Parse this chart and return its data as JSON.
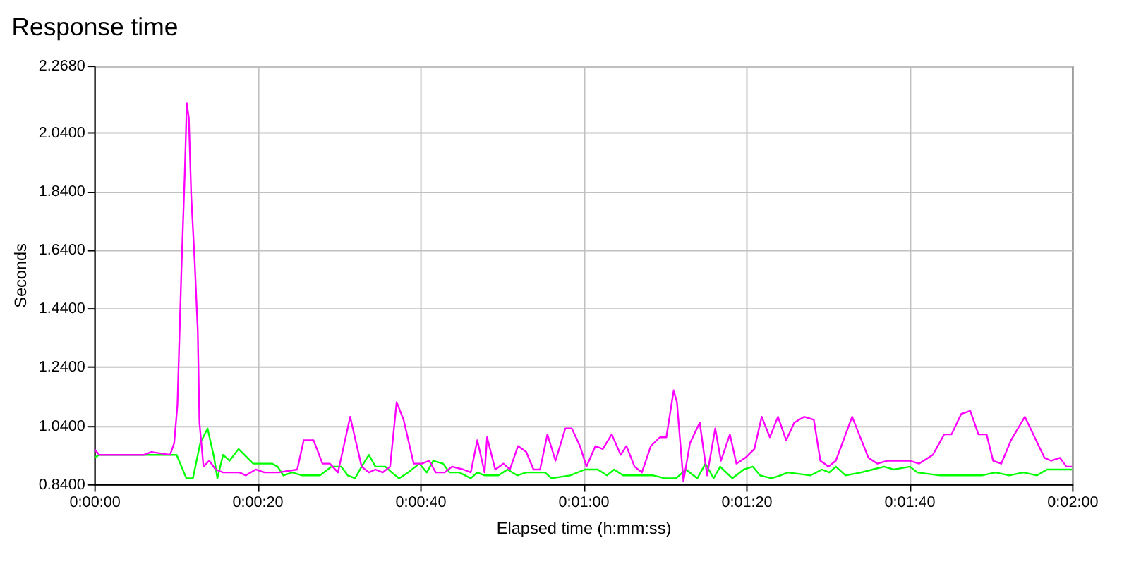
{
  "chart_data": {
    "type": "line",
    "title": "Response time",
    "xlabel": "Elapsed time (h:mm:ss)",
    "ylabel": "Seconds",
    "xlim": [
      0,
      120
    ],
    "xticks": [
      {
        "value": 0,
        "label": "0:00:00"
      },
      {
        "value": 20,
        "label": "0:00:20"
      },
      {
        "value": 40,
        "label": "0:00:40"
      },
      {
        "value": 60,
        "label": "0:01:00"
      },
      {
        "value": 80,
        "label": "0:01:20"
      },
      {
        "value": 100,
        "label": "0:01:40"
      },
      {
        "value": 120,
        "label": "0:02:00"
      }
    ],
    "ylim": [
      0.84,
      2.268
    ],
    "yticks": [
      {
        "value": 0.84,
        "label": "0.8400"
      },
      {
        "value": 1.04,
        "label": "1.0400"
      },
      {
        "value": 1.24,
        "label": "1.2400"
      },
      {
        "value": 1.44,
        "label": "1.4400"
      },
      {
        "value": 1.64,
        "label": "1.6400"
      },
      {
        "value": 1.84,
        "label": "1.8400"
      },
      {
        "value": 2.04,
        "label": "2.0400"
      },
      {
        "value": 2.268,
        "label": "2.2680"
      }
    ],
    "grid": true,
    "legend": false,
    "marker": "none",
    "line_style": "solid",
    "series": [
      {
        "color": "#00ff00",
        "x": [
          0,
          0.6,
          10.1,
          11.3,
          12.1,
          13,
          13.9,
          14.7,
          15.1,
          15.8,
          16.6,
          17.7,
          19.5,
          20.9,
          21.8,
          22.5,
          23.2,
          24.3,
          25.5,
          26.6,
          27.7,
          29.1,
          30.3,
          31.1,
          32,
          32.8,
          33.7,
          34.5,
          35.7,
          36.5,
          37.4,
          38.5,
          39.9,
          40.8,
          41.6,
          42.8,
          43.6,
          44.8,
          46.2,
          47,
          47.9,
          49.6,
          50.7,
          51.9,
          53,
          54.1,
          55.3,
          56.1,
          58.4,
          60.2,
          61.8,
          62.9,
          63.8,
          64.9,
          66.3,
          68.6,
          70.0,
          71.4,
          72.6,
          74.0,
          75.0,
          76.0,
          76.8,
          78.3,
          79.7,
          80.8,
          81.7,
          83.1,
          84.2,
          85.1,
          87.9,
          89.3,
          90.2,
          91.0,
          92.2,
          94.1,
          95.5,
          96.9,
          98.1,
          100.1,
          101.0,
          103.8,
          105.2,
          108.9,
          110.6,
          112.3,
          114.0,
          115.7,
          116.9,
          120
        ],
        "values": [
          0.93,
          0.94,
          0.94,
          0.86,
          0.86,
          0.98,
          1.03,
          0.93,
          0.86,
          0.94,
          0.92,
          0.96,
          0.91,
          0.91,
          0.91,
          0.9,
          0.87,
          0.88,
          0.87,
          0.87,
          0.87,
          0.9,
          0.9,
          0.87,
          0.86,
          0.9,
          0.94,
          0.9,
          0.9,
          0.88,
          0.86,
          0.88,
          0.91,
          0.88,
          0.92,
          0.91,
          0.88,
          0.88,
          0.86,
          0.88,
          0.87,
          0.87,
          0.89,
          0.87,
          0.88,
          0.88,
          0.88,
          0.86,
          0.87,
          0.89,
          0.89,
          0.87,
          0.89,
          0.87,
          0.87,
          0.87,
          0.86,
          0.86,
          0.89,
          0.86,
          0.91,
          0.86,
          0.9,
          0.86,
          0.89,
          0.9,
          0.87,
          0.86,
          0.87,
          0.88,
          0.87,
          0.89,
          0.88,
          0.9,
          0.87,
          0.88,
          0.89,
          0.9,
          0.89,
          0.9,
          0.88,
          0.87,
          0.87,
          0.87,
          0.88,
          0.87,
          0.88,
          0.87,
          0.89,
          0.89
        ]
      },
      {
        "color": "#ff00ff",
        "x": [
          0,
          0.6,
          6.1,
          7,
          9.3,
          9.8,
          10.2,
          10.7,
          11.1,
          11.35,
          11.6,
          11.9,
          12.3,
          12.7,
          12.9,
          13.4,
          14.1,
          14.9,
          15.8,
          16.9,
          17.8,
          18.6,
          19.8,
          20.9,
          22.6,
          24.9,
          25.7,
          26.9,
          28,
          28.9,
          29.9,
          31.4,
          32.8,
          33.7,
          34.5,
          35.4,
          36.3,
          37.1,
          37.95,
          39.2,
          40.2,
          41.1,
          41.9,
          43,
          43.9,
          45.3,
          46.2,
          47,
          47.9,
          48.2,
          49.2,
          50.2,
          51,
          52,
          53,
          53.9,
          54.7,
          55.6,
          56.6,
          57.8,
          58.6,
          59.6,
          60.4,
          61.5,
          62.4,
          63.5,
          64.6,
          65.3,
          66.3,
          67.2,
          68.3,
          69.4,
          70.2,
          71.1,
          71.5,
          72.3,
          73.1,
          74.3,
          75.2,
          76.2,
          76.9,
          78.0,
          78.8,
          79.9,
          81.0,
          81.9,
          82.9,
          83.9,
          84.9,
          85.9,
          87.1,
          88.3,
          89.1,
          90.1,
          91.0,
          93.0,
          95.0,
          96.1,
          97.3,
          100.1,
          101.2,
          102.9,
          104.3,
          105.2,
          106.4,
          107.5,
          108.5,
          109.5,
          110.3,
          111.3,
          112.5,
          114.2,
          115.4,
          116.6,
          117.4,
          118.5,
          119.3,
          120
        ],
        "values": [
          0.96,
          0.94,
          0.94,
          0.95,
          0.94,
          0.98,
          1.11,
          1.58,
          1.9,
          2.14,
          2.09,
          1.82,
          1.61,
          1.36,
          1.05,
          0.9,
          0.92,
          0.89,
          0.88,
          0.88,
          0.88,
          0.87,
          0.89,
          0.88,
          0.88,
          0.89,
          0.99,
          0.99,
          0.91,
          0.91,
          0.88,
          1.07,
          0.9,
          0.88,
          0.89,
          0.88,
          0.9,
          1.12,
          1.06,
          0.91,
          0.91,
          0.92,
          0.88,
          0.88,
          0.9,
          0.89,
          0.88,
          0.99,
          0.88,
          1.0,
          0.89,
          0.91,
          0.89,
          0.97,
          0.95,
          0.89,
          0.89,
          1.01,
          0.92,
          1.03,
          1.03,
          0.97,
          0.9,
          0.97,
          0.96,
          1.01,
          0.94,
          0.97,
          0.9,
          0.88,
          0.97,
          1.0,
          1.0,
          1.16,
          1.12,
          0.85,
          0.98,
          1.05,
          0.87,
          1.03,
          0.92,
          1.01,
          0.91,
          0.93,
          0.96,
          1.07,
          1.0,
          1.07,
          0.99,
          1.05,
          1.07,
          1.06,
          0.92,
          0.9,
          0.92,
          1.07,
          0.93,
          0.91,
          0.92,
          0.92,
          0.91,
          0.94,
          1.01,
          1.01,
          1.08,
          1.09,
          1.01,
          1.01,
          0.92,
          0.91,
          0.99,
          1.07,
          1.0,
          0.93,
          0.92,
          0.93,
          0.9,
          0.9
        ]
      }
    ]
  }
}
